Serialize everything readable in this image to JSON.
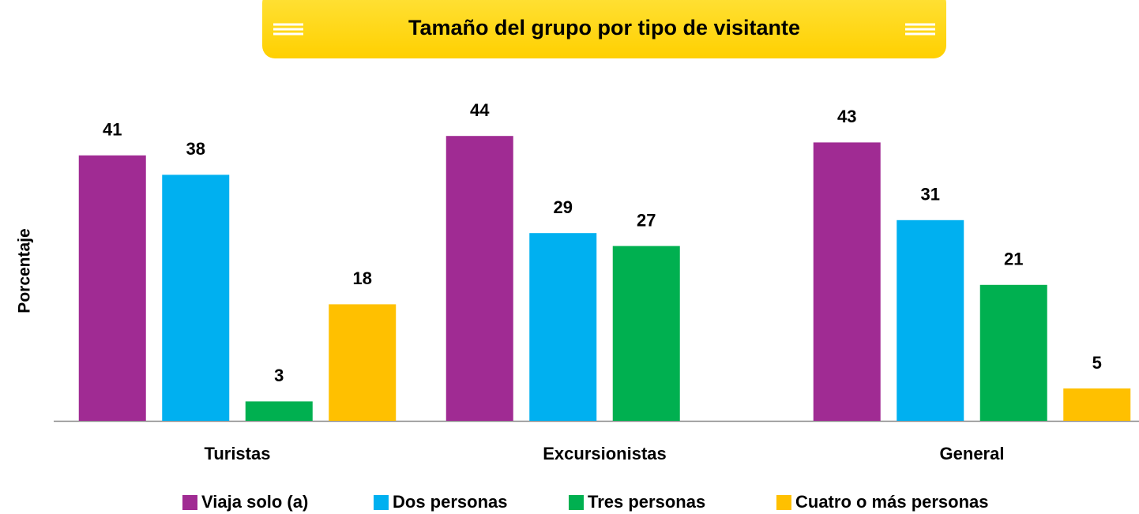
{
  "chart_data": {
    "type": "bar",
    "title": "Tamaño del grupo por tipo de visitante",
    "y_label": "Porcentaje",
    "categories": [
      "Turistas",
      "Excursionistas",
      "General"
    ],
    "series": [
      {
        "name": "Viaja solo (a)",
        "color": "#a02b93",
        "values": [
          41,
          44,
          43
        ]
      },
      {
        "name": "Dos personas",
        "color": "#00b0f0",
        "values": [
          38,
          29,
          31
        ]
      },
      {
        "name": "Tres personas",
        "color": "#00b050",
        "values": [
          3,
          27,
          21
        ]
      },
      {
        "name": "Cuatro o más personas",
        "color": "#ffc000",
        "values": [
          18,
          null,
          5
        ]
      }
    ],
    "ylim": [
      0,
      60
    ],
    "legend": "bottom"
  }
}
